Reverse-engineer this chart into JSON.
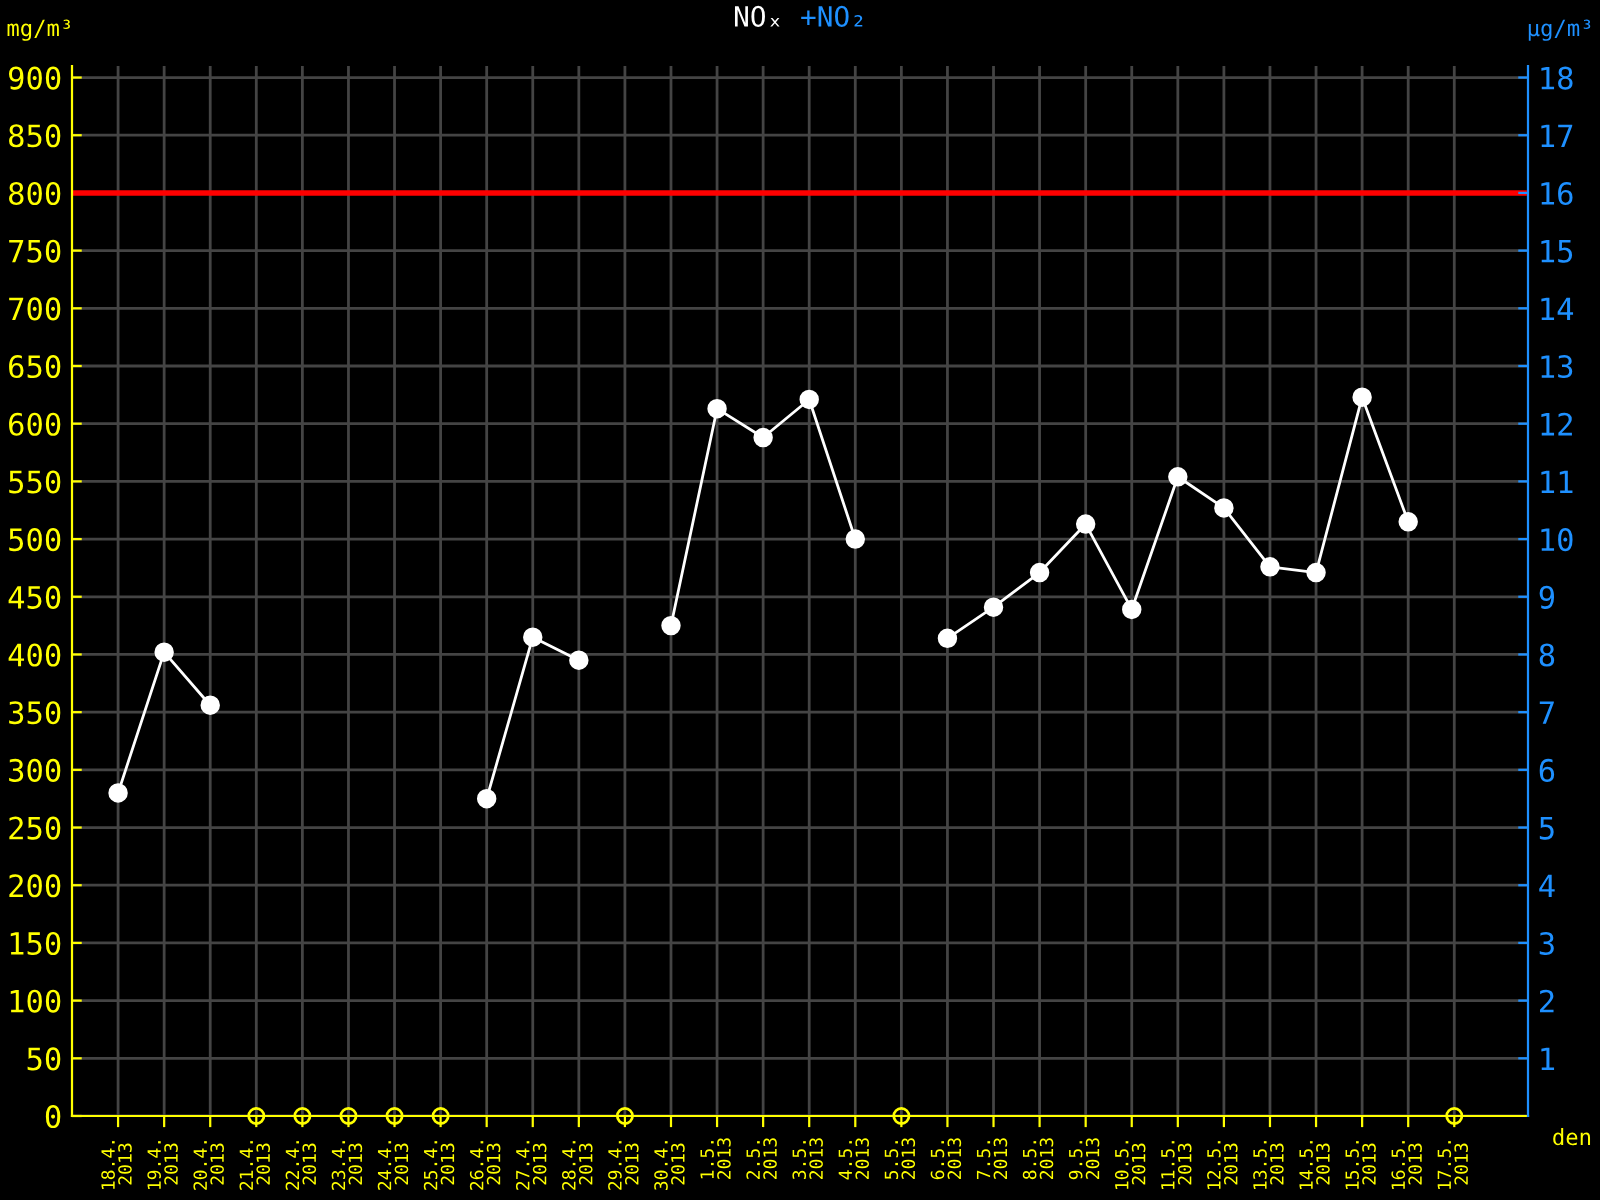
{
  "chart_data": {
    "type": "line",
    "title": "NOₓ",
    "subtitle": "+NO₂",
    "ylabel": "mg/m³",
    "y2label": "µg/m³",
    "xlabel": "den",
    "categories": [
      "18.4.\n2013",
      "19.4.\n2013",
      "20.4.\n2013",
      "21.4.\n2013",
      "22.4.\n2013",
      "23.4.\n2013",
      "24.4.\n2013",
      "25.4.\n2013",
      "26.4.\n2013",
      "27.4.\n2013",
      "28.4.\n2013",
      "29.4.\n2013",
      "30.4.\n2013",
      "1.5.\n2013",
      "2.5.\n2013",
      "3.5.\n2013",
      "4.5.\n2013",
      "5.5.\n2013",
      "6.5.\n2013",
      "7.5.\n2013",
      "8.5.\n2013",
      "9.5.\n2013",
      "10.5.\n2013",
      "11.5.\n2013",
      "12.5.\n2013",
      "13.5.\n2013",
      "14.5.\n2013",
      "15.5.\n2013",
      "16.5.\n2013",
      "17.5.\n2013"
    ],
    "series": [
      {
        "type": "line",
        "color": "#ffffff",
        "marker": "circle",
        "line_style": "solid",
        "values": [
          280,
          402,
          356,
          null,
          null,
          null,
          null,
          null,
          275,
          415,
          395,
          null,
          425,
          613,
          588,
          621,
          500,
          null,
          414,
          441,
          471,
          513,
          439,
          554,
          527,
          476,
          471,
          623,
          515,
          null
        ]
      },
      {
        "type": "scatter",
        "color": "#ffff00",
        "marker": "circle",
        "values": [
          null,
          null,
          null,
          0,
          0,
          0,
          0,
          0,
          null,
          null,
          null,
          0,
          null,
          null,
          null,
          null,
          null,
          0,
          null,
          null,
          null,
          null,
          null,
          null,
          null,
          null,
          null,
          null,
          null,
          0
        ]
      }
    ],
    "ylim": [
      0,
      910
    ],
    "yticks": [
      0,
      50,
      100,
      150,
      200,
      250,
      300,
      350,
      400,
      450,
      500,
      550,
      600,
      650,
      700,
      750,
      800,
      850,
      900
    ],
    "y2lim": [
      0,
      18.2
    ],
    "y2ticks": [
      1,
      2,
      3,
      4,
      5,
      6,
      7,
      8,
      9,
      10,
      11,
      12,
      13,
      14,
      15,
      16,
      17,
      18
    ],
    "ref_lines": [
      {
        "axis": "y",
        "value": 800,
        "color": "#ff0000"
      }
    ],
    "grid": true
  }
}
